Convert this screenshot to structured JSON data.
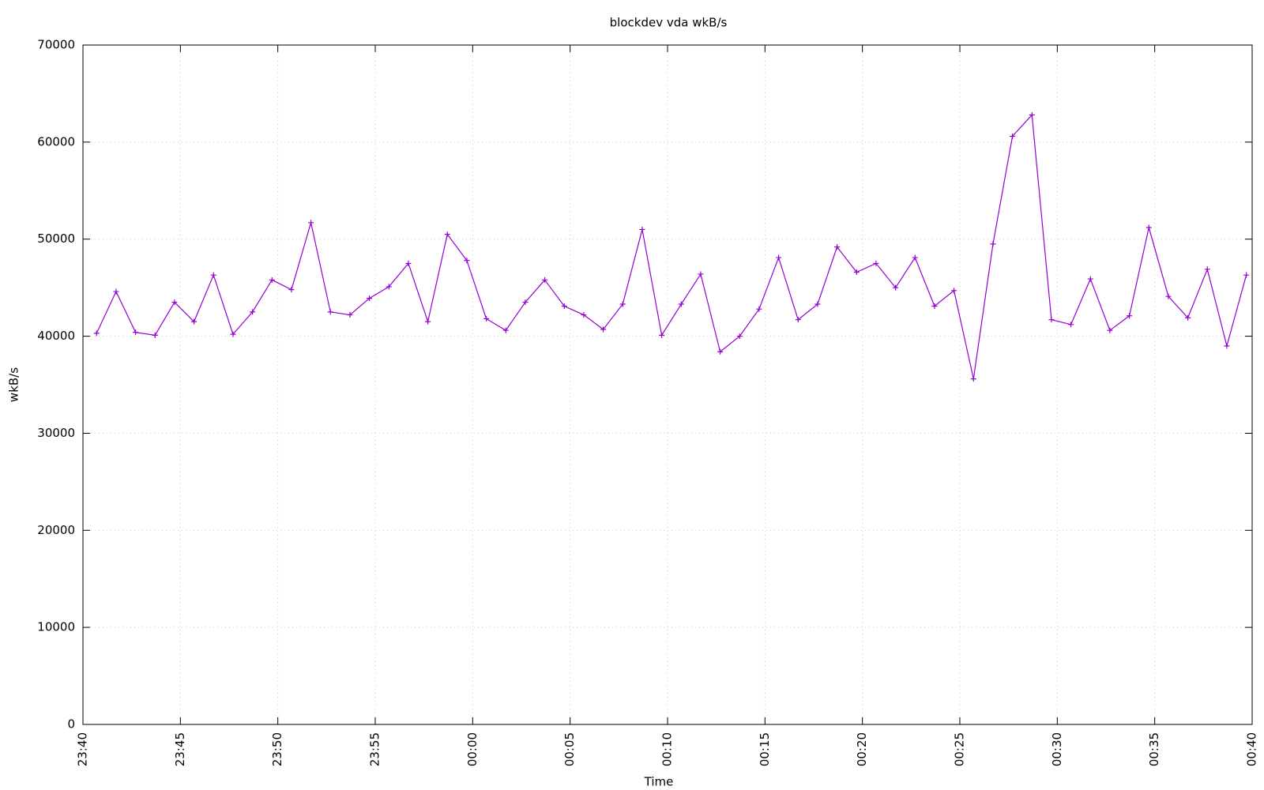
{
  "chart_data": {
    "type": "line",
    "title": "blockdev vda wkB/s",
    "x_label": "Time",
    "y_label": "wkB/s",
    "x": [
      0.7,
      1.7,
      2.7,
      3.7,
      4.7,
      5.7,
      6.7,
      7.7,
      8.7,
      9.7,
      10.7,
      11.7,
      12.7,
      13.7,
      14.7,
      15.7,
      16.7,
      17.7,
      18.7,
      19.7,
      20.7,
      21.7,
      22.7,
      23.7,
      24.7,
      25.7,
      26.7,
      27.7,
      28.7,
      29.7,
      30.7,
      31.7,
      32.7,
      33.7,
      34.7,
      35.7,
      36.7,
      37.7,
      38.7,
      39.7,
      40.7,
      41.7,
      42.7,
      43.7,
      44.7,
      45.7,
      46.7,
      47.7,
      48.7,
      49.7,
      50.7,
      51.7,
      52.7,
      53.7,
      54.7,
      55.7,
      56.7,
      57.7,
      58.7,
      59.7
    ],
    "series": [
      {
        "name": "wkB/s",
        "color": "#9400d3",
        "values": [
          40300,
          44600,
          40400,
          40100,
          43500,
          41500,
          46300,
          40200,
          42500,
          45800,
          44800,
          51700,
          42500,
          42200,
          43900,
          45100,
          47500,
          41500,
          50500,
          47800,
          41800,
          40600,
          43500,
          45800,
          43100,
          42200,
          40700,
          43300,
          51000,
          40100,
          43300,
          46400,
          38400,
          40000,
          42800,
          48100,
          41700,
          43300,
          49200,
          46600,
          47500,
          45000,
          48100,
          43100,
          44700,
          35600,
          49500,
          60600,
          62800,
          41700,
          41200,
          45900,
          40600,
          42100,
          51200,
          44100,
          41900,
          46900,
          39000,
          46300
        ]
      }
    ],
    "xlim": [
      0,
      60
    ],
    "xticks": [
      {
        "value": 0,
        "label": "23:40"
      },
      {
        "value": 5,
        "label": "23:45"
      },
      {
        "value": 10,
        "label": "23:50"
      },
      {
        "value": 15,
        "label": "23:55"
      },
      {
        "value": 20,
        "label": "00:00"
      },
      {
        "value": 25,
        "label": "00:05"
      },
      {
        "value": 30,
        "label": "00:10"
      },
      {
        "value": 35,
        "label": "00:15"
      },
      {
        "value": 40,
        "label": "00:20"
      },
      {
        "value": 45,
        "label": "00:25"
      },
      {
        "value": 50,
        "label": "00:30"
      },
      {
        "value": 55,
        "label": "00:35"
      },
      {
        "value": 60,
        "label": "00:40"
      }
    ],
    "ylim": [
      0,
      70000
    ],
    "yticks": [
      0,
      10000,
      20000,
      30000,
      40000,
      50000,
      60000,
      70000
    ],
    "grid": true
  }
}
